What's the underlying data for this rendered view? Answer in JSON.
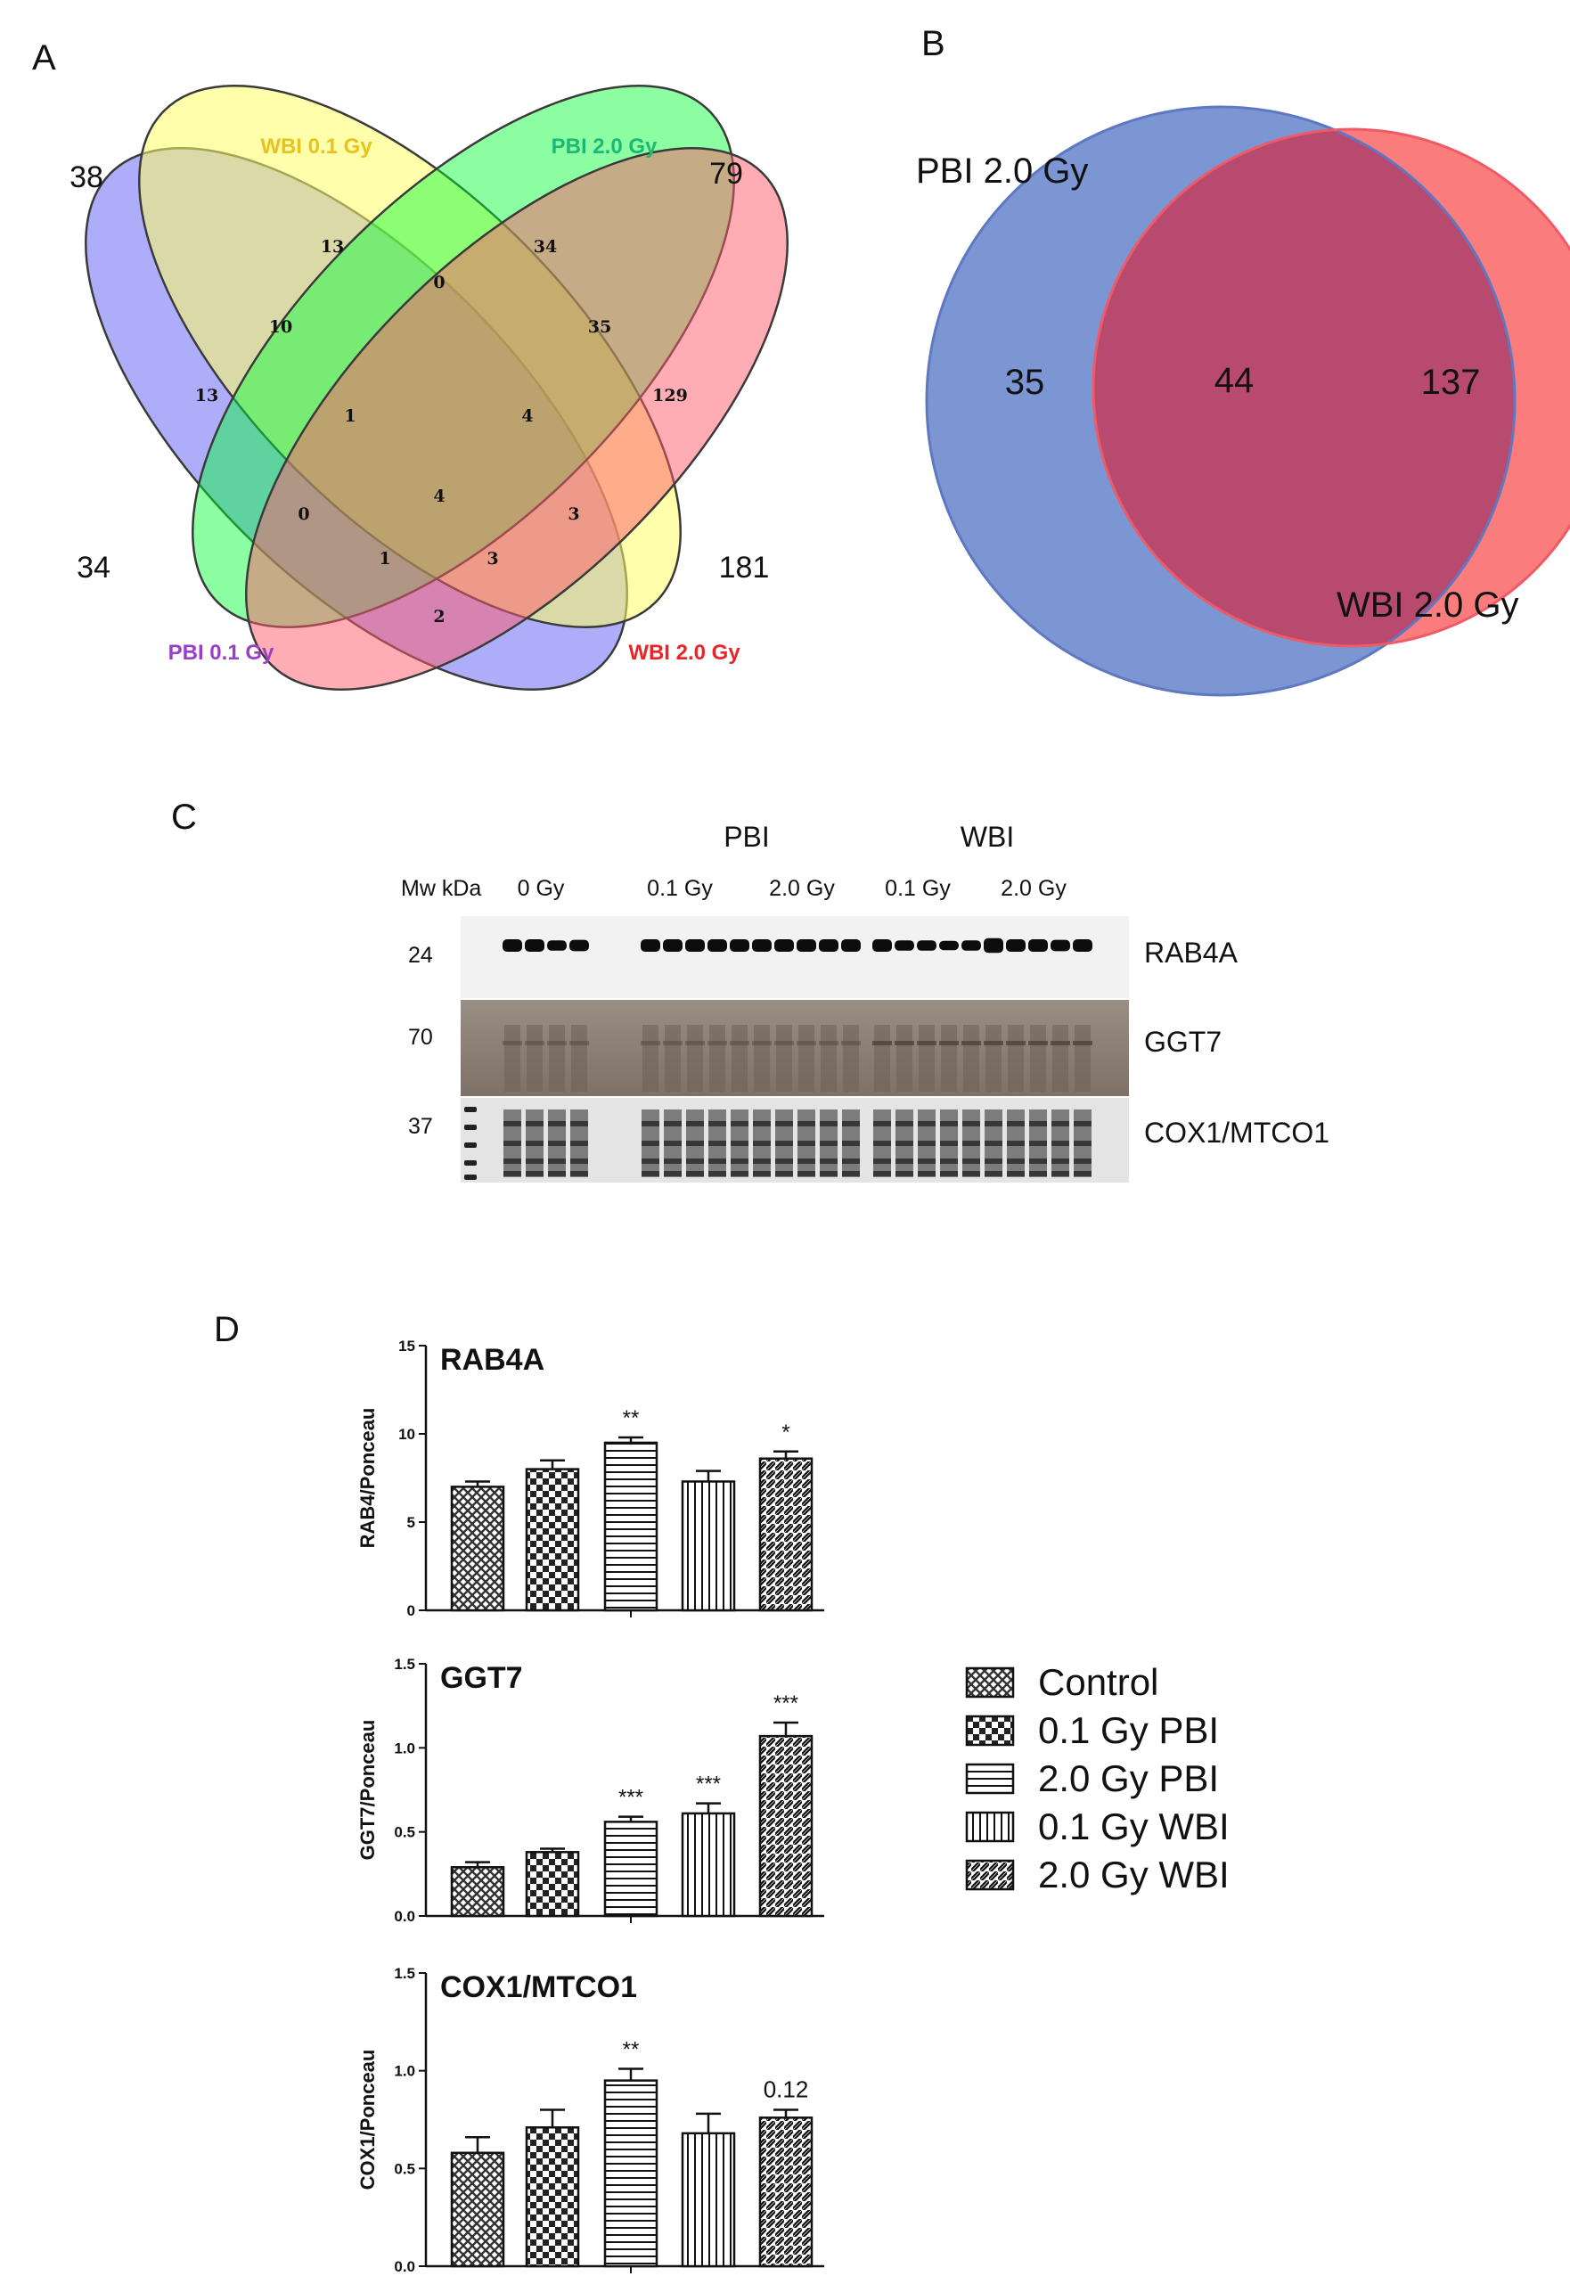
{
  "panels": {
    "a": "A",
    "b": "B",
    "c": "C",
    "d": "D"
  },
  "venn4": {
    "labels": {
      "wbi01": "WBI 0.1 Gy",
      "pbi20": "PBI 2.0 Gy",
      "pbi01": "PBI 0.1 Gy",
      "wbi20": "WBI 2.0 Gy"
    },
    "colors": {
      "wbi01": "#e8c21e",
      "pbi20": "#1cb874",
      "pbi01": "#9b3fc7",
      "wbi20": "#e8262a"
    },
    "totals": {
      "wbi01": "38",
      "pbi20": "79",
      "pbi01": "34",
      "wbi20": "181"
    },
    "regions": {
      "only_wbi01": "13",
      "only_pbi20": "34",
      "only_pbi01": "13",
      "only_wbi20": "129",
      "pbi01_wbi01": "10",
      "wbi01_pbi20": "0",
      "pbi20_wbi20": "35",
      "pbi01_wbi01_pbi20": "1",
      "wbi01_pbi20_wbi20": "4",
      "all_four": "4",
      "pbi01_pbi20": "0",
      "wbi01_wbi20": "3",
      "pbi01_pbi20_wbi20": "1",
      "pbi01_wbi01_wbi20": "3",
      "pbi01_wbi20": "2"
    }
  },
  "venn2": {
    "left_label": "PBI 2.0 Gy",
    "right_label": "WBI 2.0 Gy",
    "left_only": "35",
    "overlap": "44",
    "right_only": "137",
    "left_color": "#7b96d3",
    "right_color": "#fb7c7c"
  },
  "blot": {
    "group_pbi": "PBI",
    "group_wbi": "WBI",
    "mw_header": "Mw kDa",
    "doses": [
      "0 Gy",
      "0.1 Gy",
      "2.0 Gy",
      "0.1 Gy",
      "2.0 Gy"
    ],
    "rows": [
      {
        "mw": "24",
        "name": "RAB4A"
      },
      {
        "mw": "70",
        "name": "GGT7"
      },
      {
        "mw": "37",
        "name": "COX1/MTCO1"
      }
    ]
  },
  "chart_data": [
    {
      "type": "bar",
      "title": "RAB4A",
      "ylabel": "RAB4/Ponceau",
      "ylim": [
        0,
        15
      ],
      "yticks": [
        "0",
        "5",
        "10",
        "15"
      ],
      "categories": [
        "Control",
        "0.1 Gy PBI",
        "2.0 Gy PBI",
        "0.1 Gy WBI",
        "2.0 Gy WBI"
      ],
      "values": [
        7.0,
        8.0,
        9.5,
        7.3,
        8.6
      ],
      "errors": [
        0.3,
        0.5,
        0.3,
        0.6,
        0.4
      ],
      "annotations": [
        "",
        "",
        "**",
        "",
        "*"
      ]
    },
    {
      "type": "bar",
      "title": "GGT7",
      "ylabel": "GGT7/Ponceau",
      "ylim": [
        0,
        1.5
      ],
      "yticks": [
        "0.0",
        "0.5",
        "1.0",
        "1.5"
      ],
      "categories": [
        "Control",
        "0.1 Gy PBI",
        "2.0 Gy PBI",
        "0.1 Gy WBI",
        "2.0 Gy WBI"
      ],
      "values": [
        0.29,
        0.38,
        0.56,
        0.61,
        1.07
      ],
      "errors": [
        0.03,
        0.02,
        0.03,
        0.06,
        0.08
      ],
      "annotations": [
        "",
        "",
        "***",
        "***",
        "***"
      ]
    },
    {
      "type": "bar",
      "title": "COX1/MTCO1",
      "ylabel": "COX1/Ponceau",
      "ylim": [
        0,
        1.5
      ],
      "yticks": [
        "0.0",
        "0.5",
        "1.0",
        "1.5"
      ],
      "categories": [
        "Control",
        "0.1 Gy PBI",
        "2.0 Gy PBI",
        "0.1 Gy WBI",
        "2.0 Gy WBI"
      ],
      "values": [
        0.58,
        0.71,
        0.95,
        0.68,
        0.76
      ],
      "errors": [
        0.08,
        0.09,
        0.06,
        0.1,
        0.04
      ],
      "annotations": [
        "",
        "",
        "**",
        "",
        "0.12"
      ]
    }
  ],
  "legend": {
    "items": [
      "Control",
      "0.1 Gy PBI",
      "2.0 Gy PBI",
      "0.1 Gy WBI",
      "2.0 Gy WBI"
    ]
  }
}
